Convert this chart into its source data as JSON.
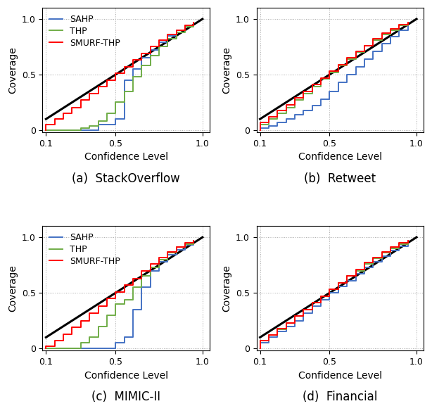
{
  "subplots": [
    {
      "title": "(a)  StackOverflow",
      "sahp": {
        "x": [
          0.1,
          0.15,
          0.2,
          0.25,
          0.3,
          0.35,
          0.4,
          0.45,
          0.5,
          0.55,
          0.6,
          0.65,
          0.7,
          0.75,
          0.8,
          0.85,
          0.9,
          0.95
        ],
        "y": [
          0.0,
          0.0,
          0.0,
          0.0,
          0.0,
          0.0,
          0.05,
          0.05,
          0.1,
          0.45,
          0.55,
          0.65,
          0.72,
          0.79,
          0.85,
          0.9,
          0.94,
          0.97
        ]
      },
      "thp": {
        "x": [
          0.1,
          0.15,
          0.2,
          0.25,
          0.3,
          0.35,
          0.4,
          0.45,
          0.5,
          0.55,
          0.6,
          0.65,
          0.7,
          0.75,
          0.8,
          0.85,
          0.9,
          0.95
        ],
        "y": [
          0.0,
          0.0,
          0.0,
          0.0,
          0.02,
          0.04,
          0.08,
          0.15,
          0.25,
          0.35,
          0.48,
          0.58,
          0.67,
          0.75,
          0.82,
          0.88,
          0.93,
          0.96
        ]
      },
      "smurf": {
        "x": [
          0.1,
          0.15,
          0.2,
          0.25,
          0.3,
          0.35,
          0.4,
          0.45,
          0.5,
          0.55,
          0.6,
          0.65,
          0.7,
          0.75,
          0.8,
          0.85,
          0.9,
          0.95
        ],
        "y": [
          0.05,
          0.1,
          0.15,
          0.2,
          0.27,
          0.33,
          0.39,
          0.45,
          0.51,
          0.57,
          0.63,
          0.69,
          0.75,
          0.81,
          0.86,
          0.9,
          0.94,
          0.97
        ]
      },
      "has_legend": true
    },
    {
      "title": "(b)  Retweet",
      "sahp": {
        "x": [
          0.1,
          0.15,
          0.2,
          0.25,
          0.3,
          0.35,
          0.4,
          0.45,
          0.5,
          0.55,
          0.6,
          0.65,
          0.7,
          0.75,
          0.8,
          0.85,
          0.9,
          0.95
        ],
        "y": [
          0.02,
          0.04,
          0.07,
          0.1,
          0.14,
          0.18,
          0.22,
          0.28,
          0.35,
          0.43,
          0.5,
          0.57,
          0.64,
          0.71,
          0.78,
          0.84,
          0.9,
          0.94
        ]
      },
      "thp": {
        "x": [
          0.1,
          0.15,
          0.2,
          0.25,
          0.3,
          0.35,
          0.4,
          0.45,
          0.5,
          0.55,
          0.6,
          0.65,
          0.7,
          0.75,
          0.8,
          0.85,
          0.9,
          0.95
        ],
        "y": [
          0.05,
          0.1,
          0.15,
          0.2,
          0.27,
          0.33,
          0.39,
          0.46,
          0.52,
          0.58,
          0.64,
          0.7,
          0.76,
          0.81,
          0.86,
          0.9,
          0.94,
          0.97
        ]
      },
      "smurf": {
        "x": [
          0.1,
          0.15,
          0.2,
          0.25,
          0.3,
          0.35,
          0.4,
          0.45,
          0.5,
          0.55,
          0.6,
          0.65,
          0.7,
          0.75,
          0.8,
          0.85,
          0.9,
          0.95
        ],
        "y": [
          0.07,
          0.12,
          0.18,
          0.23,
          0.29,
          0.35,
          0.41,
          0.47,
          0.53,
          0.59,
          0.65,
          0.71,
          0.76,
          0.82,
          0.87,
          0.91,
          0.95,
          0.97
        ]
      },
      "has_legend": false
    },
    {
      "title": "(c)  MIMIC-II",
      "sahp": {
        "x": [
          0.1,
          0.15,
          0.2,
          0.25,
          0.3,
          0.35,
          0.4,
          0.45,
          0.5,
          0.55,
          0.6,
          0.65,
          0.7,
          0.75,
          0.8,
          0.85,
          0.9,
          0.95
        ],
        "y": [
          0.0,
          0.0,
          0.0,
          0.0,
          0.0,
          0.0,
          0.0,
          0.0,
          0.05,
          0.1,
          0.35,
          0.55,
          0.7,
          0.78,
          0.84,
          0.89,
          0.93,
          0.97
        ]
      },
      "thp": {
        "x": [
          0.1,
          0.15,
          0.2,
          0.25,
          0.3,
          0.35,
          0.4,
          0.45,
          0.5,
          0.55,
          0.6,
          0.65,
          0.7,
          0.75,
          0.8,
          0.85,
          0.9,
          0.95
        ],
        "y": [
          0.0,
          0.0,
          0.0,
          0.0,
          0.05,
          0.1,
          0.2,
          0.3,
          0.4,
          0.44,
          0.55,
          0.65,
          0.73,
          0.8,
          0.86,
          0.91,
          0.94,
          0.97
        ]
      },
      "smurf": {
        "x": [
          0.1,
          0.15,
          0.2,
          0.25,
          0.3,
          0.35,
          0.4,
          0.45,
          0.5,
          0.55,
          0.6,
          0.65,
          0.7,
          0.75,
          0.8,
          0.85,
          0.9,
          0.95
        ],
        "y": [
          0.02,
          0.07,
          0.13,
          0.19,
          0.25,
          0.32,
          0.38,
          0.45,
          0.51,
          0.57,
          0.63,
          0.7,
          0.76,
          0.82,
          0.87,
          0.91,
          0.95,
          0.97
        ]
      },
      "has_legend": true
    },
    {
      "title": "(d)  Financial",
      "sahp": {
        "x": [
          0.1,
          0.15,
          0.2,
          0.25,
          0.3,
          0.35,
          0.4,
          0.45,
          0.5,
          0.55,
          0.6,
          0.65,
          0.7,
          0.75,
          0.8,
          0.85,
          0.9,
          0.95
        ],
        "y": [
          0.05,
          0.1,
          0.15,
          0.2,
          0.25,
          0.32,
          0.38,
          0.44,
          0.5,
          0.56,
          0.61,
          0.67,
          0.73,
          0.78,
          0.83,
          0.88,
          0.92,
          0.95
        ]
      },
      "thp": {
        "x": [
          0.1,
          0.15,
          0.2,
          0.25,
          0.3,
          0.35,
          0.4,
          0.45,
          0.5,
          0.55,
          0.6,
          0.65,
          0.7,
          0.75,
          0.8,
          0.85,
          0.9,
          0.95
        ],
        "y": [
          0.07,
          0.12,
          0.17,
          0.23,
          0.29,
          0.35,
          0.41,
          0.47,
          0.53,
          0.59,
          0.65,
          0.7,
          0.76,
          0.81,
          0.86,
          0.9,
          0.94,
          0.97
        ]
      },
      "smurf": {
        "x": [
          0.1,
          0.15,
          0.2,
          0.25,
          0.3,
          0.35,
          0.4,
          0.45,
          0.5,
          0.55,
          0.6,
          0.65,
          0.7,
          0.75,
          0.8,
          0.85,
          0.9,
          0.95
        ],
        "y": [
          0.07,
          0.12,
          0.18,
          0.23,
          0.29,
          0.35,
          0.41,
          0.47,
          0.53,
          0.59,
          0.65,
          0.71,
          0.77,
          0.82,
          0.87,
          0.91,
          0.95,
          0.97
        ]
      },
      "has_legend": false
    }
  ],
  "colors": {
    "sahp": "#4472C4",
    "thp": "#70AD47",
    "smurf": "#FF0000",
    "diagonal": "#000000"
  },
  "legend_labels": {
    "sahp": "SAHP",
    "thp": "THP",
    "smurf": "SMURF-THP"
  },
  "xlabel": "Confidence Level",
  "ylabel": "Coverage",
  "xticks": [
    0.1,
    0.5,
    1.0
  ],
  "yticks": [
    0.0,
    0.5,
    1.0
  ],
  "xticklabels": [
    "0.1",
    "0.5",
    "1.0"
  ],
  "yticklabels": [
    "0",
    "0.5",
    "1.0"
  ],
  "grid_color": "#aaaaaa",
  "linewidth": 1.4,
  "diag_linewidth": 2.2,
  "title_fontsize": 12,
  "label_fontsize": 10,
  "tick_fontsize": 9,
  "legend_fontsize": 9
}
